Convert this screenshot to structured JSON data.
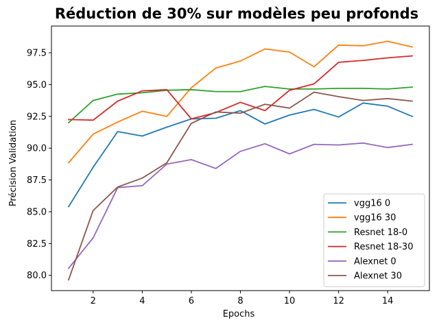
{
  "chart_data": {
    "type": "line",
    "title": "Réduction de 30% sur modèles peu profonds",
    "xlabel": "Epochs",
    "ylabel": "Précision Validation",
    "xlim": [
      0.3,
      15.7
    ],
    "ylim": [
      78.8,
      99.6
    ],
    "xticks": [
      2,
      4,
      6,
      8,
      10,
      12,
      14
    ],
    "yticks": [
      80.0,
      82.5,
      85.0,
      87.5,
      90.0,
      92.5,
      95.0,
      97.5
    ],
    "ytick_labels": [
      "80.0",
      "82.5",
      "85.0",
      "87.5",
      "90.0",
      "92.5",
      "95.0",
      "97.5"
    ],
    "grid": false,
    "legend_position": "lower-right",
    "x": [
      1,
      2,
      3,
      4,
      5,
      6,
      7,
      8,
      9,
      10,
      11,
      12,
      13,
      14,
      15
    ],
    "series": [
      {
        "name": "vgg16 0",
        "color": "#1f77b4",
        "values": [
          85.4,
          88.5,
          91.3,
          90.95,
          91.65,
          92.3,
          92.35,
          92.95,
          91.9,
          92.6,
          93.05,
          92.45,
          93.55,
          93.3,
          92.5
        ]
      },
      {
        "name": "vgg16 30",
        "color": "#ff7f0e",
        "values": [
          88.85,
          91.1,
          92.05,
          92.9,
          92.5,
          94.75,
          96.3,
          96.85,
          97.8,
          97.55,
          96.4,
          98.1,
          98.05,
          98.4,
          97.95
        ]
      },
      {
        "name": "Resnet 18-0",
        "color": "#2ca02c",
        "values": [
          92.0,
          93.75,
          94.25,
          94.35,
          94.55,
          94.6,
          94.45,
          94.45,
          94.85,
          94.65,
          94.65,
          94.7,
          94.7,
          94.65,
          94.8
        ]
      },
      {
        "name": "Resnet 18-30",
        "color": "#d62728",
        "values": [
          92.25,
          92.2,
          93.7,
          94.5,
          94.6,
          92.3,
          92.8,
          93.6,
          92.95,
          94.55,
          95.05,
          96.75,
          96.9,
          97.1,
          97.25
        ]
      },
      {
        "name": "Alexnet 0",
        "color": "#9467bd",
        "values": [
          80.55,
          82.95,
          86.9,
          87.05,
          88.75,
          89.1,
          88.4,
          89.75,
          90.35,
          89.55,
          90.3,
          90.25,
          90.4,
          90.05,
          90.3
        ]
      },
      {
        "name": "Alexnet 30",
        "color": "#8c564b",
        "values": [
          79.65,
          85.1,
          86.95,
          87.65,
          88.85,
          91.95,
          92.85,
          92.75,
          93.45,
          93.15,
          94.4,
          94.05,
          93.75,
          93.9,
          93.7
        ]
      }
    ]
  }
}
